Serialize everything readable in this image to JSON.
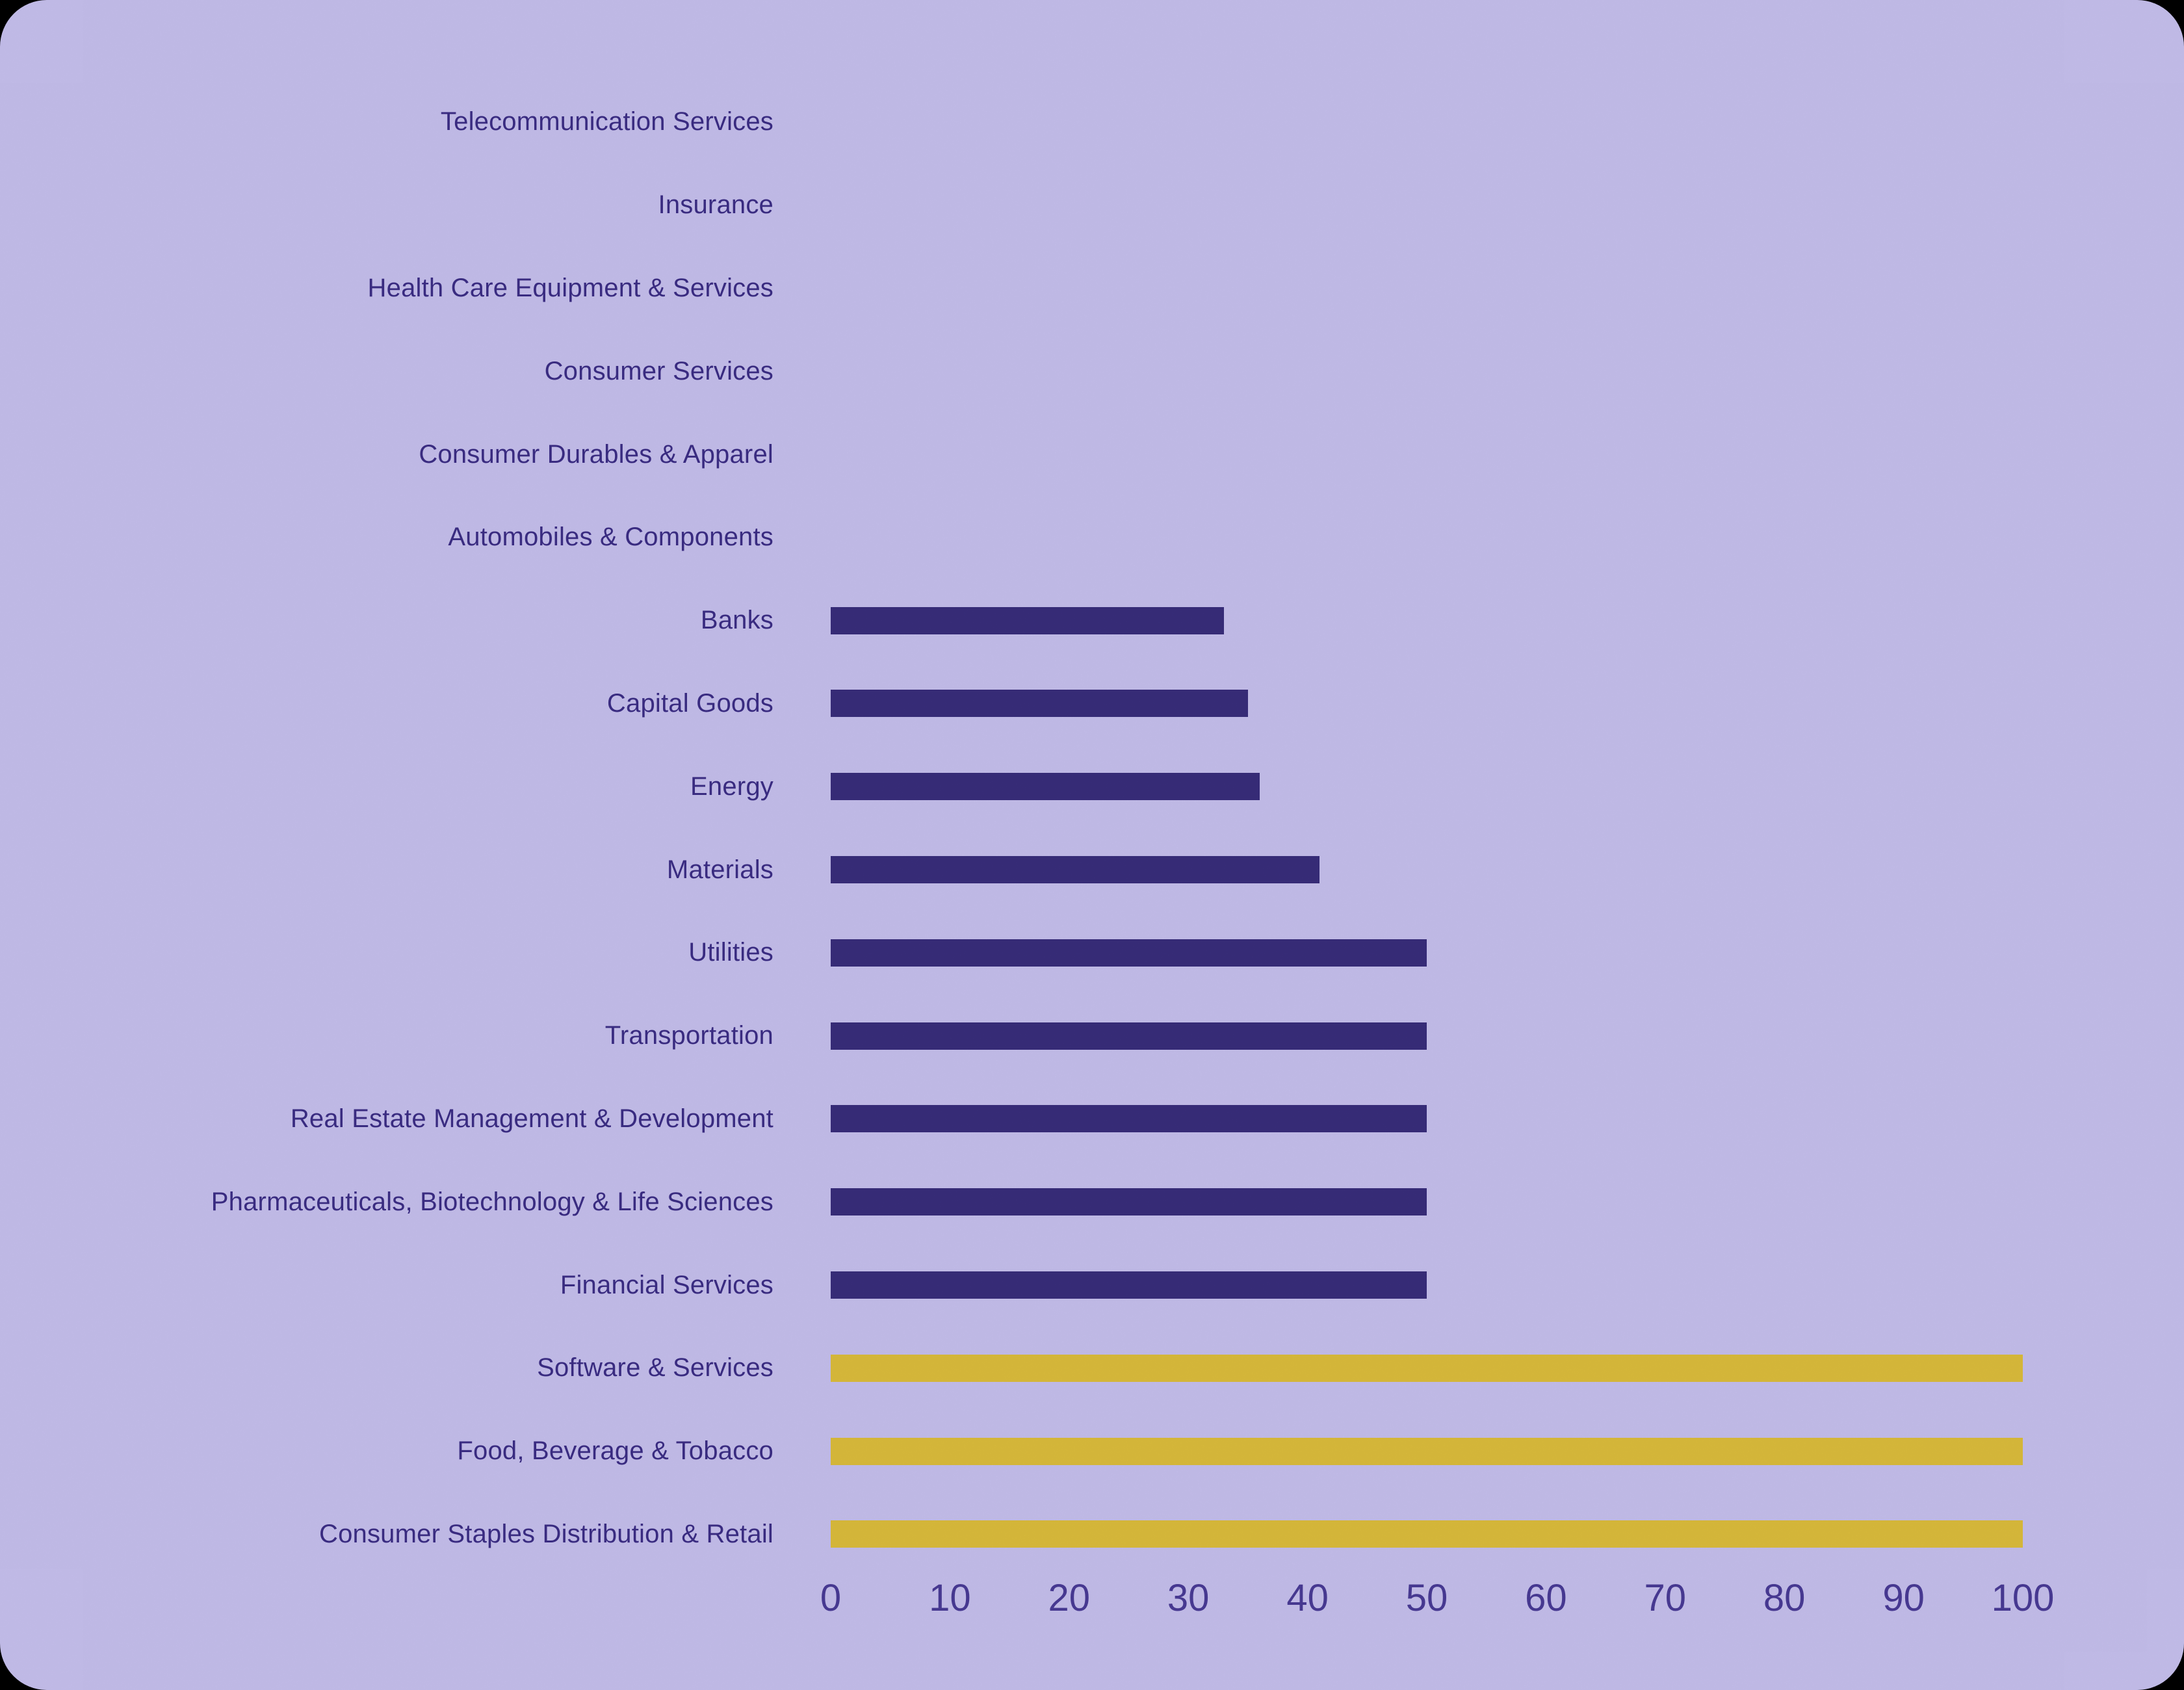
{
  "colors": {
    "outer-bg": "#000000",
    "card-bg": "#cec7f7",
    "label-color": "#3e2f8b",
    "axis-color": "#4c3d9c",
    "bar-purple": "#3b2f80",
    "bar-yellow": "#e4c43e"
  },
  "chart_data": {
    "type": "bar",
    "orientation": "horizontal",
    "title": "",
    "xlabel": "",
    "ylabel": "",
    "xlim": [
      0,
      100
    ],
    "x_ticks": [
      0,
      10,
      20,
      30,
      40,
      50,
      60,
      70,
      80,
      90,
      100
    ],
    "grid": false,
    "legend": false,
    "categories": [
      "Telecommunication Services",
      "Insurance",
      "Health Care Equipment & Services",
      "Consumer Services",
      "Consumer Durables & Apparel",
      "Automobiles & Components",
      "Banks",
      "Capital Goods",
      "Energy",
      "Materials",
      "Utilities",
      "Transportation",
      "Real Estate Management & Development",
      "Pharmaceuticals, Biotechnology & Life Sciences",
      "Financial Services",
      "Software & Services",
      "Food, Beverage & Tobacco",
      "Consumer Staples Distribution & Retail"
    ],
    "values": [
      0,
      0,
      0,
      0,
      0,
      0,
      33,
      35,
      36,
      41,
      50,
      50,
      50,
      50,
      50,
      100,
      100,
      100
    ],
    "bar_colors": [
      "#3b2f80",
      "#3b2f80",
      "#3b2f80",
      "#3b2f80",
      "#3b2f80",
      "#3b2f80",
      "#3b2f80",
      "#3b2f80",
      "#3b2f80",
      "#3b2f80",
      "#3b2f80",
      "#3b2f80",
      "#3b2f80",
      "#3b2f80",
      "#3b2f80",
      "#e4c43e",
      "#e4c43e",
      "#e4c43e"
    ]
  }
}
